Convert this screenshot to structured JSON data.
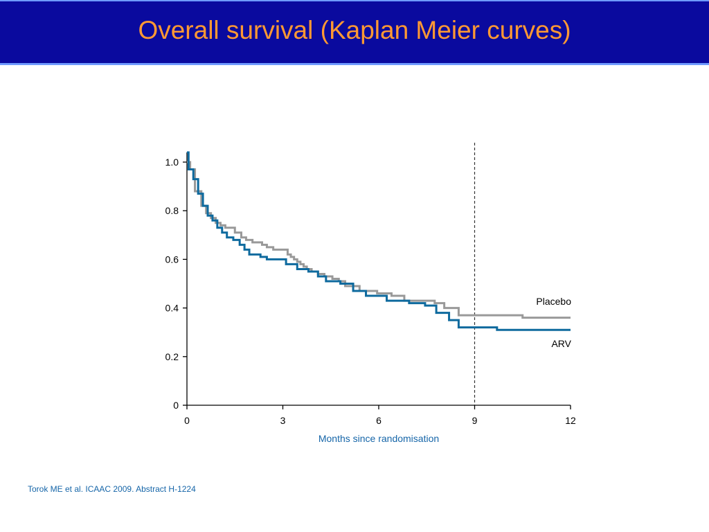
{
  "slide": {
    "title": "Overall survival (Kaplan Meier curves)",
    "citation": "Torok ME et al. ICAAC 2009. Abstract H-1224"
  },
  "colors": {
    "title_bar": "#0a0a9e",
    "title_text": "#ff9933",
    "placebo": "#999999",
    "arv": "#0e6a9e",
    "axis_label": "#1565a8"
  },
  "chart_data": {
    "type": "line",
    "title": "",
    "xlabel": "Months since randomisation",
    "ylabel": "",
    "xlim": [
      0,
      12
    ],
    "ylim": [
      0,
      1.0
    ],
    "x_ticks": [
      0,
      3,
      6,
      9,
      12
    ],
    "x_tick_labels": [
      "0",
      "3",
      "6",
      "9",
      "12"
    ],
    "y_ticks": [
      0,
      0.2,
      0.4,
      0.6,
      0.8,
      1.0
    ],
    "y_tick_labels": [
      "0",
      "0.2",
      "0.4",
      "0.6",
      "0.8",
      "1.0"
    ],
    "grid": false,
    "reference_line_x": 9,
    "series": [
      {
        "name": "Placebo",
        "step": true,
        "x": [
          0,
          0.1,
          0.25,
          0.45,
          0.6,
          0.75,
          0.9,
          1.05,
          1.2,
          1.5,
          1.7,
          1.85,
          2.05,
          2.35,
          2.5,
          2.7,
          3.15,
          3.25,
          3.35,
          3.45,
          3.55,
          3.65,
          3.75,
          3.9,
          4.1,
          4.3,
          4.55,
          4.75,
          4.95,
          5.4,
          5.95,
          6.4,
          6.8,
          7.75,
          8.05,
          8.5,
          10.5,
          12
        ],
        "y": [
          1.0,
          0.97,
          0.88,
          0.82,
          0.79,
          0.77,
          0.75,
          0.74,
          0.73,
          0.71,
          0.69,
          0.68,
          0.67,
          0.66,
          0.65,
          0.64,
          0.62,
          0.61,
          0.6,
          0.59,
          0.58,
          0.57,
          0.56,
          0.55,
          0.54,
          0.53,
          0.52,
          0.51,
          0.49,
          0.47,
          0.46,
          0.45,
          0.43,
          0.42,
          0.4,
          0.37,
          0.36,
          0.36
        ]
      },
      {
        "name": "ARV",
        "step": true,
        "x": [
          0,
          0.05,
          0.2,
          0.35,
          0.5,
          0.65,
          0.8,
          0.95,
          1.1,
          1.25,
          1.45,
          1.65,
          1.8,
          1.95,
          2.3,
          2.5,
          3.1,
          3.45,
          3.8,
          4.1,
          4.35,
          4.8,
          5.2,
          5.6,
          6.25,
          6.95,
          7.45,
          7.8,
          8.2,
          8.5,
          9.7,
          12
        ],
        "y": [
          1.04,
          0.97,
          0.93,
          0.87,
          0.82,
          0.78,
          0.76,
          0.73,
          0.71,
          0.69,
          0.68,
          0.66,
          0.64,
          0.62,
          0.61,
          0.6,
          0.58,
          0.56,
          0.55,
          0.53,
          0.51,
          0.5,
          0.47,
          0.45,
          0.43,
          0.42,
          0.41,
          0.38,
          0.35,
          0.32,
          0.31,
          0.31
        ]
      }
    ],
    "series_labels": [
      "Placebo",
      "ARV"
    ]
  }
}
